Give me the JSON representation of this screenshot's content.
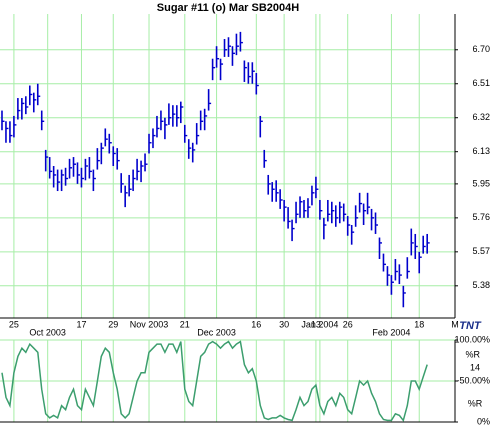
{
  "logo": "TNT",
  "chart_data": [
    {
      "type": "ohlc",
      "title": "Sugar #11 (o) Mar SB2004H",
      "color": "#0000cc",
      "grid": true,
      "xlim": [
        -0.5,
        114
      ],
      "ylim": [
        5.2,
        6.9
      ],
      "yticks": [
        {
          "value": 6.7,
          "label": "6.70"
        },
        6.51,
        6.32,
        6.13,
        5.95,
        5.76,
        5.57,
        5.38
      ],
      "xticks": [
        {
          "value": 3,
          "label": "25"
        },
        {
          "value": 20,
          "label": "17"
        },
        {
          "value": 28,
          "label": "29"
        },
        {
          "value": 46,
          "label": "21"
        },
        {
          "value": 64,
          "label": "16"
        },
        {
          "value": 71,
          "label": "30"
        },
        {
          "value": 79,
          "label": "13"
        },
        {
          "value": 87,
          "label": "26"
        },
        {
          "value": 105,
          "label": "18"
        },
        {
          "value": 114,
          "label": "M"
        }
      ],
      "month_ticks": [
        {
          "value": 11.5,
          "label": "Oct 2003"
        },
        {
          "value": 37,
          "label": "Nov 2003"
        },
        {
          "value": 54,
          "label": "Dec 2003"
        },
        {
          "value": 80,
          "label": "Jan 2004"
        },
        {
          "value": 98,
          "label": "Feb 2004"
        }
      ],
      "high": [
        6.36,
        6.3,
        6.3,
        6.33,
        6.43,
        6.43,
        6.44,
        6.5,
        6.46,
        6.51,
        6.36,
        6.14,
        6.1,
        6.05,
        6.03,
        6.03,
        6.04,
        6.09,
        6.1,
        6.07,
        6.04,
        6.09,
        6.1,
        6.03,
        6.15,
        6.18,
        6.26,
        6.23,
        6.16,
        6.15,
        6.01,
        5.94,
        6.0,
        6.03,
        6.09,
        6.08,
        6.12,
        6.23,
        6.26,
        6.33,
        6.36,
        6.32,
        6.4,
        6.39,
        6.39,
        6.41,
        6.28,
        6.2,
        6.18,
        6.29,
        6.36,
        6.37,
        6.48,
        6.65,
        6.72,
        6.65,
        6.76,
        6.77,
        6.72,
        6.79,
        6.8,
        6.64,
        6.63,
        6.63,
        6.57,
        6.33,
        6.14,
        6.0,
        5.96,
        5.97,
        5.92,
        5.86,
        5.82,
        5.75,
        5.85,
        5.88,
        5.86,
        5.87,
        5.94,
        5.99,
        5.86,
        5.76,
        5.86,
        5.85,
        5.83,
        5.85,
        5.84,
        5.77,
        5.72,
        5.83,
        5.9,
        5.84,
        5.9,
        5.81,
        5.79,
        5.65,
        5.56,
        5.49,
        5.44,
        5.53,
        5.5,
        5.38,
        5.54,
        5.7,
        5.67,
        5.57,
        5.66,
        5.67
      ],
      "low": [
        6.25,
        6.18,
        6.18,
        6.21,
        6.31,
        6.31,
        6.34,
        6.39,
        6.35,
        6.39,
        6.25,
        6.02,
        5.98,
        5.93,
        5.91,
        5.91,
        5.94,
        5.98,
        5.99,
        5.95,
        5.93,
        5.97,
        5.98,
        5.91,
        6.03,
        6.06,
        6.16,
        6.12,
        6.05,
        6.03,
        5.9,
        5.82,
        5.88,
        5.91,
        5.97,
        5.96,
        6.02,
        6.12,
        6.15,
        6.21,
        6.25,
        6.2,
        6.28,
        6.27,
        6.27,
        6.29,
        6.18,
        6.09,
        6.07,
        6.17,
        6.25,
        6.25,
        6.36,
        6.53,
        6.6,
        6.53,
        6.66,
        6.66,
        6.61,
        6.67,
        6.69,
        6.52,
        6.51,
        6.51,
        6.45,
        6.21,
        6.04,
        5.89,
        5.85,
        5.85,
        5.81,
        5.74,
        5.7,
        5.63,
        5.73,
        5.76,
        5.76,
        5.76,
        5.83,
        5.87,
        5.75,
        5.64,
        5.74,
        5.73,
        5.71,
        5.73,
        5.74,
        5.66,
        5.61,
        5.71,
        5.79,
        5.72,
        5.78,
        5.69,
        5.67,
        5.53,
        5.46,
        5.38,
        5.33,
        5.41,
        5.39,
        5.26,
        5.42,
        5.55,
        5.53,
        5.45,
        5.56,
        5.56
      ],
      "close": [
        6.3,
        6.26,
        6.22,
        6.28,
        6.36,
        6.4,
        6.38,
        6.45,
        6.42,
        6.44,
        6.3,
        6.1,
        6.02,
        6.0,
        5.96,
        6.0,
        5.98,
        6.04,
        6.06,
        6.0,
        5.98,
        6.05,
        6.02,
        5.98,
        6.08,
        6.15,
        6.2,
        6.18,
        6.12,
        6.08,
        5.95,
        5.9,
        5.92,
        5.98,
        6.02,
        6.05,
        6.06,
        6.18,
        6.22,
        6.26,
        6.3,
        6.28,
        6.32,
        6.34,
        6.32,
        6.38,
        6.22,
        6.15,
        6.14,
        6.22,
        6.3,
        6.33,
        6.4,
        6.6,
        6.65,
        6.62,
        6.7,
        6.72,
        6.68,
        6.72,
        6.74,
        6.6,
        6.55,
        6.58,
        6.5,
        6.3,
        6.08,
        5.95,
        5.92,
        5.9,
        5.86,
        5.82,
        5.74,
        5.7,
        5.78,
        5.85,
        5.8,
        5.82,
        5.9,
        5.92,
        5.8,
        5.72,
        5.78,
        5.8,
        5.76,
        5.82,
        5.78,
        5.72,
        5.68,
        5.76,
        5.84,
        5.8,
        5.82,
        5.76,
        5.72,
        5.62,
        5.5,
        5.44,
        5.4,
        5.46,
        5.44,
        5.34,
        5.46,
        5.62,
        5.6,
        5.54,
        5.6,
        5.62
      ]
    },
    {
      "type": "line",
      "grid": true,
      "xlim": [
        -0.5,
        114
      ],
      "ylim": [
        0,
        100
      ],
      "yticks": [
        {
          "value": 100,
          "label": "100.00%"
        },
        {
          "value": 50,
          "label": "-50.00%"
        },
        {
          "value": 0,
          "label": "0%"
        }
      ],
      "annotations": [
        "%R",
        "14"
      ],
      "series": [
        {
          "name": "%R",
          "color": "#3c9e6e",
          "values": [
            60,
            30,
            20,
            60,
            80,
            90,
            85,
            95,
            90,
            85,
            40,
            10,
            5,
            8,
            5,
            20,
            15,
            30,
            40,
            20,
            15,
            40,
            30,
            20,
            50,
            80,
            90,
            85,
            60,
            40,
            10,
            5,
            10,
            30,
            50,
            60,
            60,
            85,
            90,
            95,
            95,
            85,
            95,
            95,
            85,
            98,
            40,
            25,
            20,
            50,
            80,
            85,
            95,
            98,
            95,
            90,
            95,
            98,
            90,
            95,
            98,
            70,
            60,
            65,
            50,
            20,
            5,
            3,
            5,
            5,
            8,
            5,
            3,
            2,
            15,
            30,
            20,
            25,
            40,
            45,
            20,
            10,
            25,
            30,
            20,
            35,
            30,
            15,
            10,
            30,
            50,
            45,
            50,
            35,
            25,
            10,
            3,
            2,
            2,
            10,
            8,
            2,
            20,
            50,
            50,
            40,
            55,
            70
          ]
        }
      ]
    }
  ]
}
